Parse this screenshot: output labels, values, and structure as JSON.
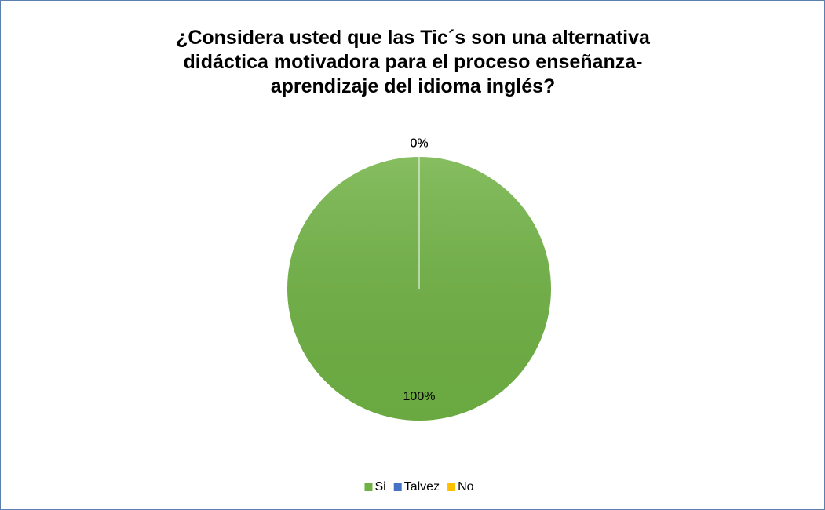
{
  "chart_data": {
    "type": "pie",
    "title": "¿Considera usted que las Tic´s son una alternativa didáctica motivadora para el proceso enseñanza-aprendizaje del idioma inglés?",
    "categories": [
      "Si",
      "Talvez",
      "No"
    ],
    "values": [
      100,
      0,
      0
    ],
    "value_labels": [
      "100%",
      "0%",
      "0%"
    ],
    "colors": [
      "#70b244",
      "#4472c4",
      "#ffc000"
    ],
    "legend": "bottom"
  }
}
